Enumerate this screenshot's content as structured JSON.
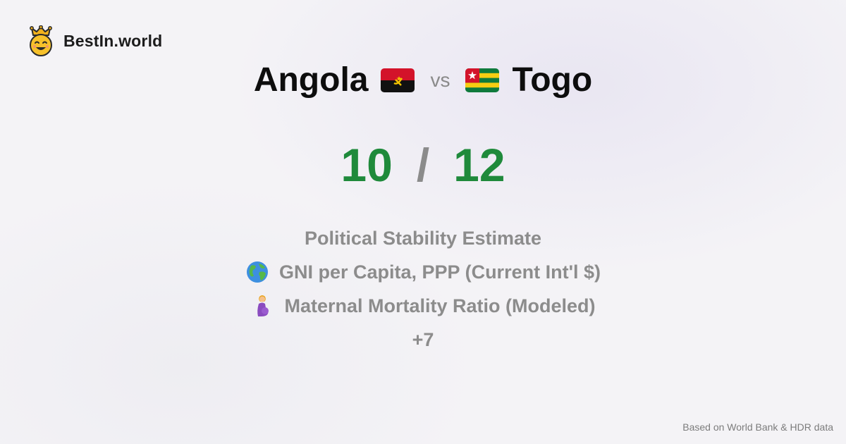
{
  "brand": {
    "name": "BestIn.world",
    "logo_icon": "crown-smiley-icon"
  },
  "comparison": {
    "left_country": "Angola",
    "left_flag": "angola-flag-icon",
    "vs_label": "vs",
    "right_country": "Togo",
    "right_flag": "togo-flag-icon"
  },
  "score": {
    "left": "10",
    "separator": "/",
    "right": "12",
    "color": "#1f8a3b"
  },
  "metrics": [
    {
      "label": "Political Stability Estimate",
      "icon": ""
    },
    {
      "label": "GNI per Capita, PPP (Current Int'l $)",
      "icon": "globe-icon"
    },
    {
      "label": "Maternal Mortality Ratio (Modeled)",
      "icon": "pregnant-woman-icon"
    }
  ],
  "more_label": "+7",
  "footer": {
    "source": "Based on World Bank & HDR data"
  }
}
